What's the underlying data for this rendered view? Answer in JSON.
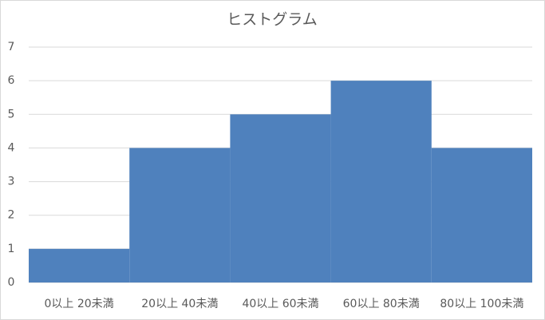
{
  "chart_data": {
    "type": "bar",
    "title": "ヒストグラム",
    "categories": [
      "0以上 20未満",
      "20以上 40未満",
      "40以上 60未満",
      "60以上 80未満",
      "80以上 100未満"
    ],
    "values": [
      1,
      4,
      5,
      6,
      4
    ],
    "color": "#4f81bd",
    "ylim": [
      0,
      7
    ],
    "yticks": [
      0,
      1,
      2,
      3,
      4,
      5,
      6,
      7
    ],
    "grid": true
  }
}
